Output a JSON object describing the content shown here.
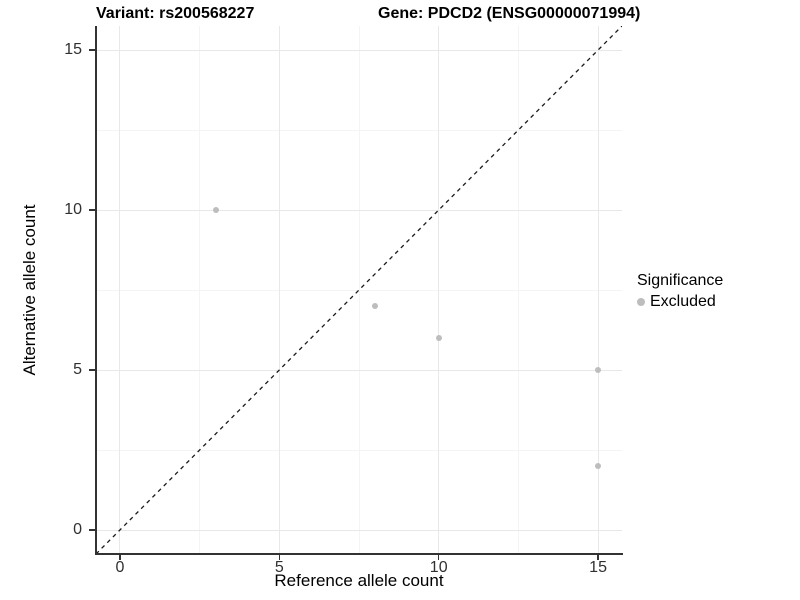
{
  "titles": {
    "variant": "Variant: rs200568227",
    "gene": "Gene: PDCD2 (ENSG00000071994)"
  },
  "chart_data": {
    "type": "scatter",
    "title_left": "Variant: rs200568227",
    "title_right": "Gene: PDCD2 (ENSG00000071994)",
    "xlabel": "Reference allele count",
    "ylabel": "Alternative allele count",
    "points": [
      {
        "x": 3,
        "y": 10,
        "series": "Excluded"
      },
      {
        "x": 8,
        "y": 7,
        "series": "Excluded"
      },
      {
        "x": 10,
        "y": 6,
        "series": "Excluded"
      },
      {
        "x": 15,
        "y": 5,
        "series": "Excluded"
      },
      {
        "x": 15,
        "y": 2,
        "series": "Excluded"
      }
    ],
    "x_ticks": [
      0,
      5,
      10,
      15
    ],
    "y_ticks": [
      0,
      5,
      10,
      15
    ],
    "minor_gridlines": [
      2.5,
      7.5,
      12.5
    ],
    "xlim": [
      -0.75,
      15.75
    ],
    "ylim": [
      -0.75,
      15.75
    ],
    "grid": "major-and-minor on white",
    "reference_line": {
      "type": "identity y=x",
      "style": "dashed",
      "color": "#1a1a1a"
    },
    "legend": {
      "position": "right",
      "title": "Significance",
      "items": [
        {
          "label": "Excluded",
          "color": "#bdbdbd"
        }
      ]
    },
    "colors": {
      "point": "#bdbdbd",
      "grid_major": "#e8e8e8",
      "grid_minor": "#f4f4f4",
      "axis": "#333333",
      "text": "#000000"
    }
  }
}
